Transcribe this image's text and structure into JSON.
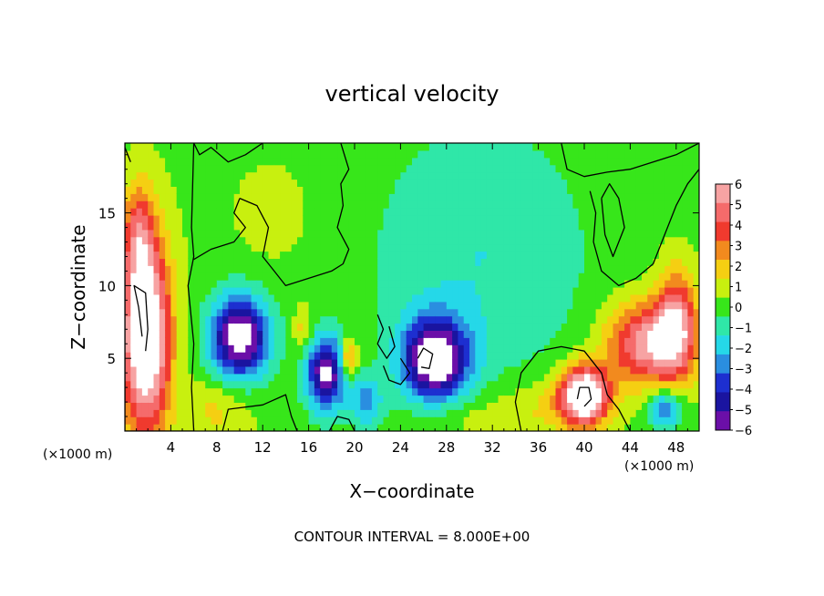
{
  "chart_data": {
    "type": "heatmap",
    "title": "vertical velocity",
    "xlabel": "X−coordinate",
    "ylabel": "Z−coordinate",
    "x_unit": "(×1000 m)",
    "z_unit": "(×1000 m)",
    "xlim": [
      0,
      50
    ],
    "ylim": [
      0,
      19.8
    ],
    "x_ticks": [
      4,
      8,
      12,
      16,
      20,
      24,
      28,
      32,
      36,
      40,
      44,
      48
    ],
    "y_ticks": [
      5,
      10,
      15
    ],
    "colorbar": {
      "levels": [
        6,
        5,
        4,
        3,
        2,
        1,
        0,
        -1,
        -2,
        -3,
        -4,
        -5,
        -6
      ],
      "labels": [
        "6",
        "5",
        "4",
        "3",
        "2",
        "1",
        "0",
        "−1",
        "−2",
        "−3",
        "−4",
        "−5",
        "−6"
      ],
      "colors": [
        "#f7a3a3",
        "#f56b6b",
        "#f03a2e",
        "#f28a1e",
        "#f5cf12",
        "#c8f00f",
        "#37e61a",
        "#2fe7a8",
        "#25d8e8",
        "#2a8ee0",
        "#1d2fd0",
        "#1a14a0",
        "#6b0fa8"
      ]
    },
    "field": {
      "background": 0.3,
      "features": [
        {
          "x": 1.8,
          "z": 6.5,
          "amp": 9,
          "sx": 1.5,
          "sz": 4.5
        },
        {
          "x": 1.2,
          "z": 13.5,
          "amp": 3.5,
          "sx": 1.0,
          "sz": 2.5
        },
        {
          "x": 45.5,
          "z": 6.0,
          "amp": 6,
          "sx": 2.5,
          "sz": 2.0
        },
        {
          "x": 48.0,
          "z": 7.5,
          "amp": 5,
          "sx": 1.2,
          "sz": 2.5
        },
        {
          "x": 40.0,
          "z": 2.5,
          "amp": 9,
          "sx": 1.5,
          "sz": 1.4
        },
        {
          "x": 19.5,
          "z": 5.0,
          "amp": 4,
          "sx": 0.5,
          "sz": 1.0
        },
        {
          "x": 15.5,
          "z": 7.0,
          "amp": 2,
          "sx": 0.6,
          "sz": 1.0
        },
        {
          "x": 10.0,
          "z": 6.5,
          "amp": -8,
          "sx": 1.8,
          "sz": 2.0
        },
        {
          "x": 17.5,
          "z": 4.0,
          "amp": -7,
          "sx": 1.2,
          "sz": 1.8
        },
        {
          "x": 27.0,
          "z": 5.0,
          "amp": -8,
          "sx": 2.0,
          "sz": 2.0
        },
        {
          "x": 21.0,
          "z": 2.0,
          "amp": -3,
          "sx": 1.0,
          "sz": 1.2
        },
        {
          "x": 47.0,
          "z": 1.5,
          "amp": -4,
          "sx": 1.0,
          "sz": 1.0
        },
        {
          "x": 31.0,
          "z": 12.0,
          "amp": -1.8,
          "sx": 7.0,
          "sz": 7.0
        },
        {
          "x": 13.0,
          "z": 15.0,
          "amp": 0.6,
          "sx": 2.5,
          "sz": 2.5
        },
        {
          "x": 8.0,
          "z": 1.5,
          "amp": 1.5,
          "sx": 2.0,
          "sz": 1.5
        },
        {
          "x": 36.0,
          "z": 1.5,
          "amp": 1.5,
          "sx": 3.0,
          "sz": 1.5
        },
        {
          "x": 29.0,
          "z": 1.0,
          "amp": 1.0,
          "sx": 3.0,
          "sz": 1.0
        }
      ],
      "contours": [
        {
          "level": 8,
          "points": [
            [
              1.5,
              6.5
            ],
            [
              1.2,
              8.5
            ],
            [
              0.8,
              10.0
            ],
            [
              1.8,
              9.5
            ],
            [
              2.0,
              7.0
            ],
            [
              1.8,
              5.5
            ]
          ]
        },
        {
          "level": 8,
          "points": [
            [
              39.4,
              2.2
            ],
            [
              39.6,
              3.0
            ],
            [
              40.4,
              3.0
            ],
            [
              40.6,
              2.2
            ],
            [
              40.0,
              1.7
            ]
          ]
        },
        {
          "level": 8,
          "points": [
            [
              25.5,
              5.0
            ],
            [
              26.0,
              5.7
            ],
            [
              26.8,
              5.3
            ],
            [
              26.5,
              4.3
            ],
            [
              25.8,
              4.4
            ]
          ]
        },
        {
          "level": 0,
          "points": [
            [
              0.0,
              19.8
            ],
            [
              0.0,
              0.0
            ],
            [
              6.0,
              0.0
            ],
            [
              5.8,
              3.0
            ],
            [
              6.0,
              6.0
            ],
            [
              5.5,
              10.0
            ],
            [
              6.0,
              12.0
            ],
            [
              5.8,
              14.0
            ],
            [
              6.0,
              19.8
            ]
          ]
        },
        {
          "level": 0,
          "points": [
            [
              8.5,
              0.0
            ],
            [
              9.0,
              1.5
            ],
            [
              12.0,
              1.8
            ],
            [
              14.0,
              2.5
            ],
            [
              14.5,
              1.0
            ],
            [
              15.0,
              0.0
            ]
          ]
        },
        {
          "level": 0,
          "points": [
            [
              6.0,
              11.8
            ],
            [
              7.5,
              12.5
            ],
            [
              9.5,
              13.0
            ],
            [
              10.5,
              14.0
            ],
            [
              9.5,
              15.0
            ],
            [
              10.0,
              16.0
            ]
          ]
        },
        {
          "level": 0,
          "points": [
            [
              6.0,
              19.8
            ],
            [
              6.5,
              19.0
            ],
            [
              7.5,
              19.5
            ],
            [
              9.0,
              18.5
            ],
            [
              10.5,
              19.0
            ],
            [
              12.0,
              19.8
            ]
          ]
        },
        {
          "level": 0,
          "points": [
            [
              10.0,
              16.0
            ],
            [
              11.5,
              15.5
            ],
            [
              12.5,
              14.0
            ],
            [
              12.0,
              12.0
            ],
            [
              13.0,
              11.0
            ],
            [
              14.0,
              10.0
            ],
            [
              16.0,
              10.5
            ],
            [
              18.0,
              11.0
            ],
            [
              19.0,
              11.5
            ],
            [
              19.5,
              12.5
            ],
            [
              18.5,
              14.0
            ],
            [
              19.0,
              15.5
            ],
            [
              18.8,
              17.0
            ],
            [
              19.5,
              18.0
            ],
            [
              18.8,
              19.8
            ]
          ]
        },
        {
          "level": 0,
          "points": [
            [
              17.8,
              0.0
            ],
            [
              18.5,
              1.0
            ],
            [
              19.5,
              0.8
            ],
            [
              20.0,
              0.0
            ]
          ]
        },
        {
          "level": 0,
          "points": [
            [
              22.0,
              8.0
            ],
            [
              22.5,
              7.0
            ],
            [
              22.0,
              6.0
            ],
            [
              22.8,
              5.0
            ],
            [
              23.5,
              5.8
            ],
            [
              23.0,
              7.2
            ]
          ]
        },
        {
          "level": 0,
          "points": [
            [
              22.5,
              4.5
            ],
            [
              23.0,
              3.5
            ],
            [
              24.0,
              3.2
            ],
            [
              24.8,
              4.0
            ],
            [
              24.0,
              5.0
            ]
          ]
        },
        {
          "level": 0,
          "points": [
            [
              34.5,
              0.0
            ],
            [
              34.0,
              2.0
            ],
            [
              34.5,
              4.0
            ],
            [
              36.0,
              5.5
            ],
            [
              38.0,
              5.8
            ],
            [
              40.0,
              5.5
            ],
            [
              41.5,
              4.0
            ],
            [
              42.0,
              2.5
            ],
            [
              43.0,
              1.5
            ],
            [
              44.0,
              0.0
            ]
          ]
        },
        {
          "level": 0,
          "points": [
            [
              38.0,
              19.8
            ],
            [
              38.5,
              18.0
            ],
            [
              40.0,
              17.5
            ],
            [
              42.0,
              17.8
            ],
            [
              44.0,
              18.0
            ],
            [
              46.0,
              18.5
            ],
            [
              48.0,
              19.0
            ],
            [
              50.0,
              19.8
            ]
          ]
        },
        {
          "level": 0,
          "points": [
            [
              40.5,
              16.5
            ],
            [
              41.0,
              15.0
            ],
            [
              40.8,
              13.0
            ],
            [
              41.5,
              11.0
            ],
            [
              43.0,
              10.0
            ],
            [
              44.5,
              10.5
            ],
            [
              46.0,
              11.5
            ],
            [
              47.0,
              13.5
            ],
            [
              48.0,
              15.5
            ],
            [
              49.0,
              17.0
            ],
            [
              50.0,
              18.0
            ]
          ]
        },
        {
          "level": 0,
          "points": [
            [
              41.5,
              16.0
            ],
            [
              42.2,
              17.0
            ],
            [
              43.0,
              16.0
            ],
            [
              43.5,
              14.0
            ],
            [
              42.5,
              12.0
            ],
            [
              41.8,
              13.5
            ],
            [
              41.5,
              16.0
            ]
          ]
        },
        {
          "level": 0,
          "points": [
            [
              0.0,
              19.5
            ],
            [
              0.5,
              18.5
            ]
          ]
        }
      ]
    }
  },
  "footer": {
    "contour_interval": "CONTOUR INTERVAL = 8.000E+00"
  }
}
